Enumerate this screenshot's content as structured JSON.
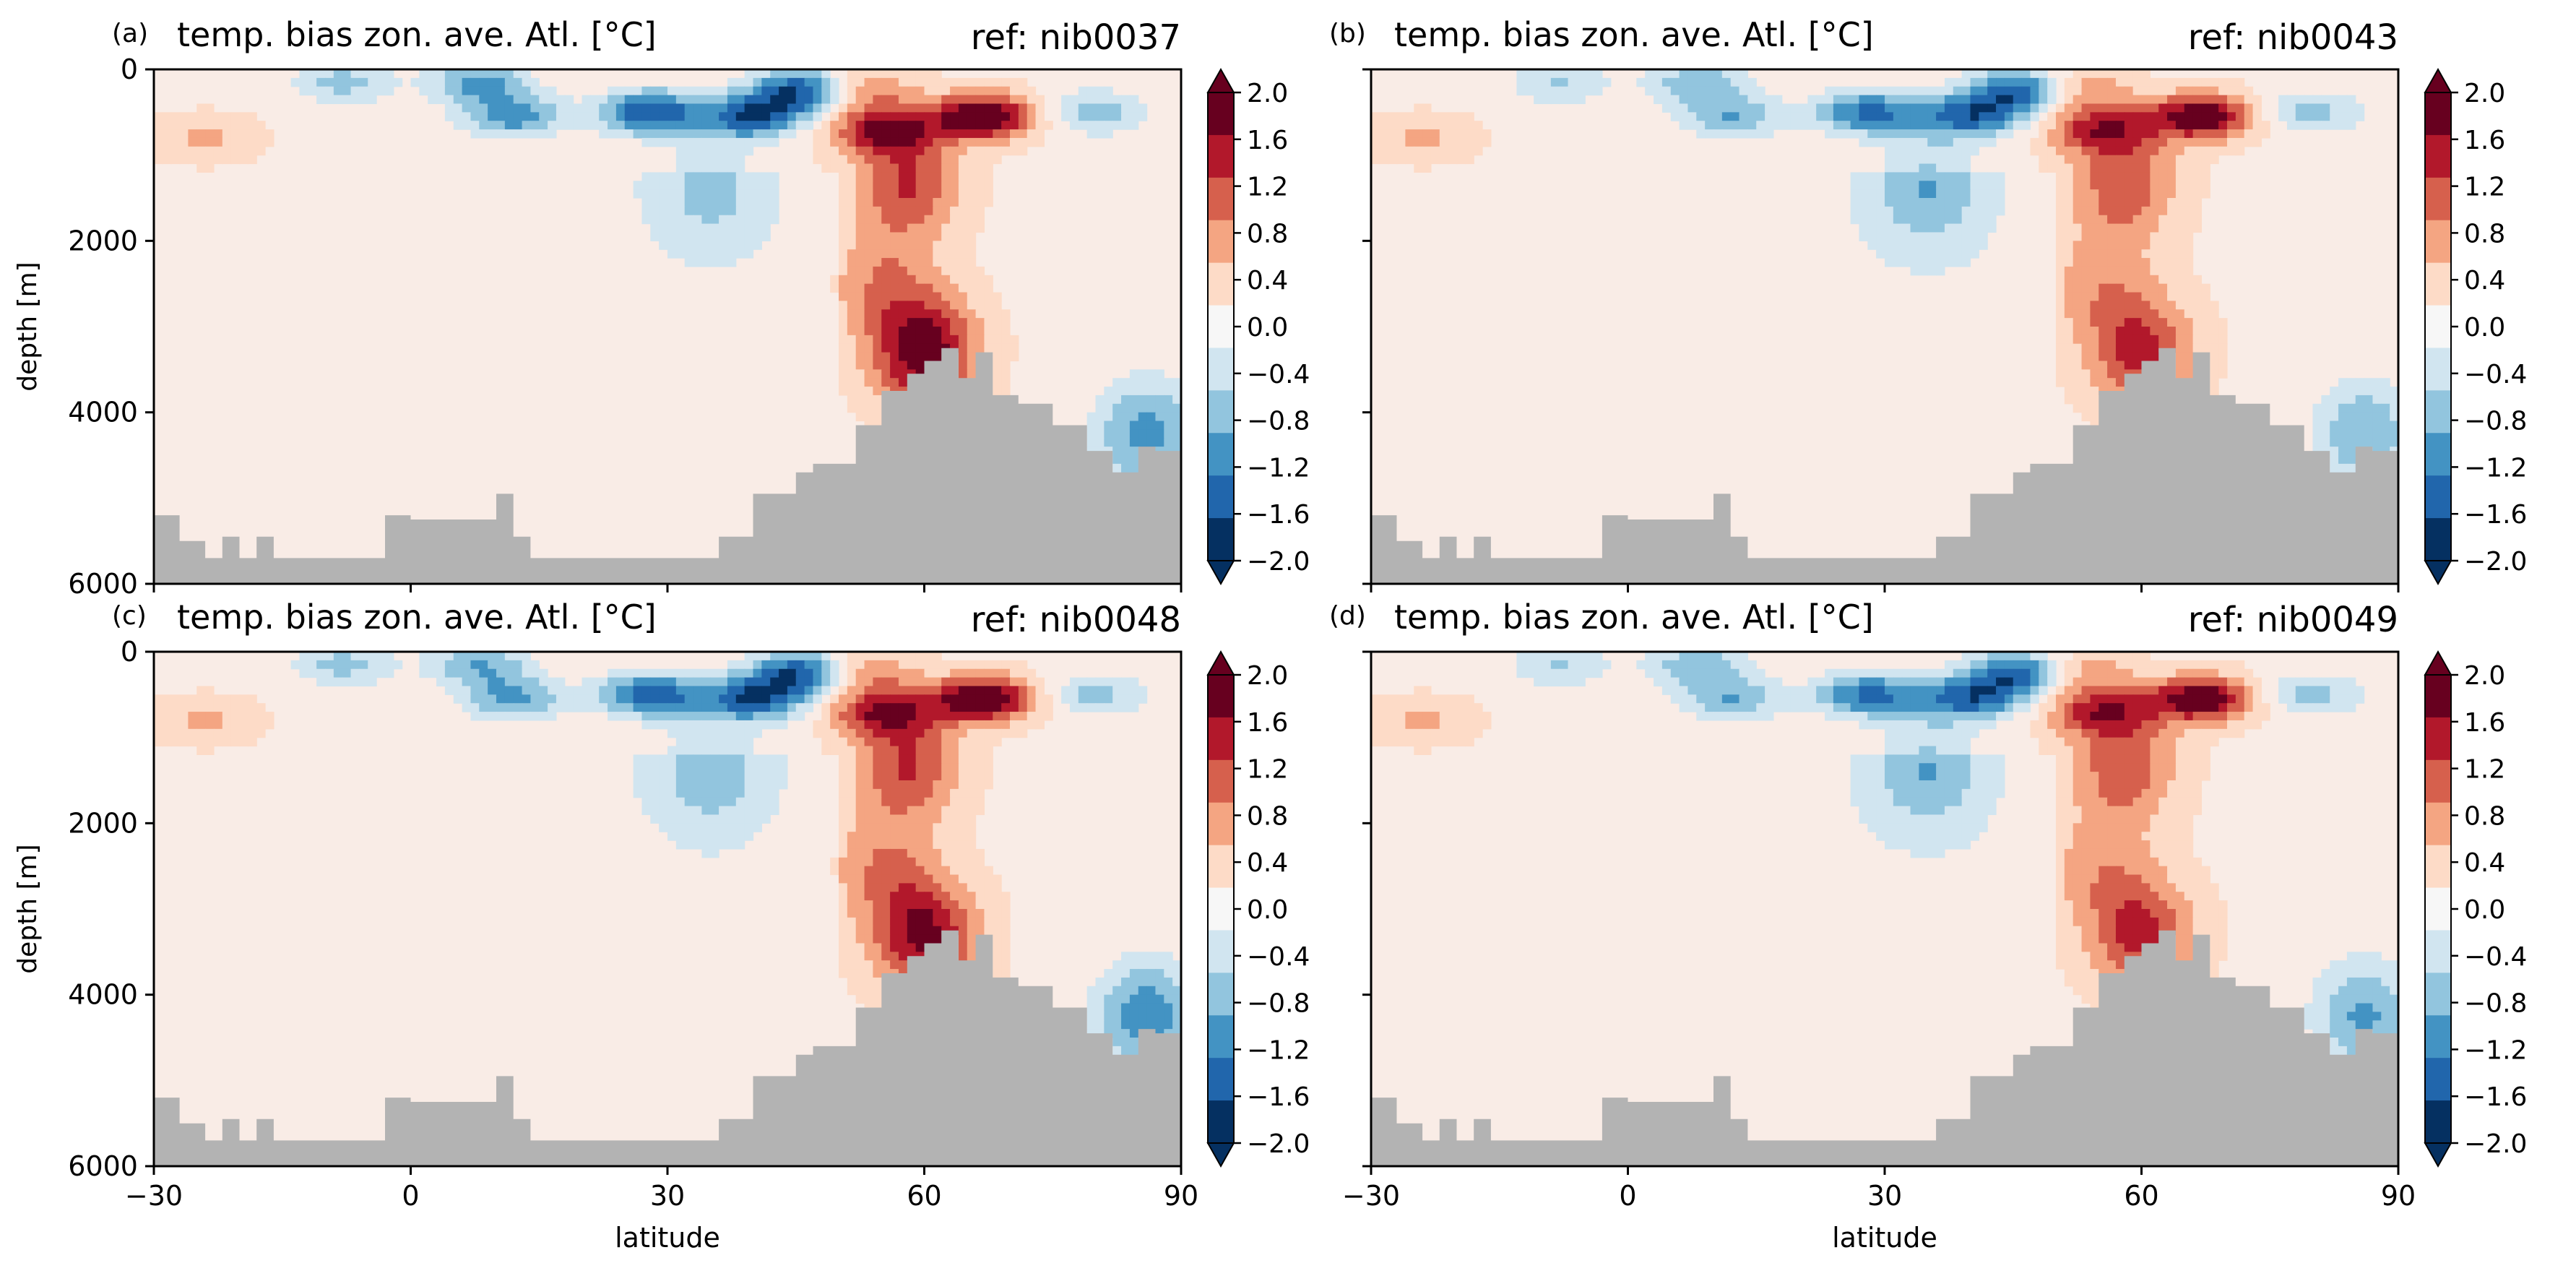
{
  "figure": {
    "colorbar_ticks": [
      "2.0",
      "1.6",
      "1.2",
      "0.8",
      "0.4",
      "0.0",
      "−0.4",
      "−0.8",
      "−1.2",
      "−1.6",
      "−2.0"
    ],
    "colormap": [
      "#053061",
      "#2166ac",
      "#4393c3",
      "#92c5de",
      "#d1e5f0",
      "#f7f7f7",
      "#fddbc7",
      "#f4a582",
      "#d6604d",
      "#b2182b",
      "#67001f"
    ],
    "land_color": "#b3b3b3"
  },
  "chart_data": [
    {
      "type": "heatmap",
      "panel_letter": "(a)",
      "title": "temp. bias zon. ave. Atl. [°C]",
      "ref_label": "ref: nib0037",
      "xlabel": "",
      "ylabel": "depth [m]",
      "xlim": [
        -30,
        90
      ],
      "ylim": [
        6000,
        0
      ],
      "xticks": [],
      "yticks": [
        "0",
        "2000",
        "4000",
        "6000"
      ],
      "colorbar": {
        "vmin": -2.0,
        "vmax": 2.0
      },
      "features": [
        {
          "lat": -8,
          "depth": 150,
          "value": -0.8
        },
        {
          "lat": 8,
          "depth": 150,
          "value": -1.1
        },
        {
          "lat": 12,
          "depth": 550,
          "value": -1.2
        },
        {
          "lat": 28,
          "depth": 500,
          "value": -1.7
        },
        {
          "lat": 40,
          "depth": 550,
          "value": -1.6
        },
        {
          "lat": 46,
          "depth": 250,
          "value": -1.9
        },
        {
          "lat": 52,
          "depth": 250,
          "value": 1.0
        },
        {
          "lat": 55,
          "depth": 700,
          "value": 1.4
        },
        {
          "lat": 58,
          "depth": 1300,
          "value": 1.2
        },
        {
          "lat": 67,
          "depth": 550,
          "value": 2.0
        },
        {
          "lat": 80,
          "depth": 500,
          "value": -0.9
        },
        {
          "lat": 35,
          "depth": 1400,
          "value": -0.6
        },
        {
          "lat": -24,
          "depth": 800,
          "value": 0.5
        },
        {
          "lat": 55,
          "depth": 2500,
          "value": 0.7
        },
        {
          "lat": 60,
          "depth": 3300,
          "value": 1.8
        },
        {
          "lat": 86,
          "depth": 4250,
          "value": -1.2
        }
      ]
    },
    {
      "type": "heatmap",
      "panel_letter": "(b)",
      "title": "temp. bias zon. ave. Atl. [°C]",
      "ref_label": "ref: nib0043",
      "xlabel": "",
      "ylabel": "",
      "xlim": [
        -30,
        90
      ],
      "ylim": [
        6000,
        0
      ],
      "xticks": [],
      "yticks": [],
      "colorbar": {
        "vmin": -2.0,
        "vmax": 2.0
      },
      "features": [
        {
          "lat": -8,
          "depth": 150,
          "value": -0.7
        },
        {
          "lat": 8,
          "depth": 150,
          "value": -0.9
        },
        {
          "lat": 12,
          "depth": 550,
          "value": -1.0
        },
        {
          "lat": 28,
          "depth": 500,
          "value": -1.5
        },
        {
          "lat": 40,
          "depth": 550,
          "value": -1.5
        },
        {
          "lat": 46,
          "depth": 250,
          "value": -1.8
        },
        {
          "lat": 52,
          "depth": 250,
          "value": 0.9
        },
        {
          "lat": 55,
          "depth": 700,
          "value": 1.2
        },
        {
          "lat": 58,
          "depth": 1300,
          "value": 1.1
        },
        {
          "lat": 67,
          "depth": 550,
          "value": 1.9
        },
        {
          "lat": 80,
          "depth": 500,
          "value": -0.8
        },
        {
          "lat": 35,
          "depth": 1400,
          "value": -0.8
        },
        {
          "lat": -24,
          "depth": 800,
          "value": 0.5
        },
        {
          "lat": 55,
          "depth": 2500,
          "value": 0.6
        },
        {
          "lat": 60,
          "depth": 3300,
          "value": 1.3
        },
        {
          "lat": 86,
          "depth": 4250,
          "value": -1.0
        }
      ]
    },
    {
      "type": "heatmap",
      "panel_letter": "(c)",
      "title": "temp. bias zon. ave. Atl. [°C]",
      "ref_label": "ref: nib0048",
      "xlabel": "latitude",
      "ylabel": "depth [m]",
      "xlim": [
        -30,
        90
      ],
      "ylim": [
        6000,
        0
      ],
      "xticks": [
        "−30",
        "0",
        "30",
        "60",
        "90"
      ],
      "yticks": [
        "0",
        "2000",
        "4000",
        "6000"
      ],
      "colorbar": {
        "vmin": -2.0,
        "vmax": 2.0
      },
      "features": [
        {
          "lat": -8,
          "depth": 150,
          "value": -0.8
        },
        {
          "lat": 8,
          "depth": 150,
          "value": -1.0
        },
        {
          "lat": 12,
          "depth": 550,
          "value": -1.1
        },
        {
          "lat": 28,
          "depth": 500,
          "value": -1.6
        },
        {
          "lat": 40,
          "depth": 550,
          "value": -1.6
        },
        {
          "lat": 46,
          "depth": 250,
          "value": -1.9
        },
        {
          "lat": 52,
          "depth": 250,
          "value": 1.0
        },
        {
          "lat": 55,
          "depth": 700,
          "value": 1.3
        },
        {
          "lat": 58,
          "depth": 1300,
          "value": 1.2
        },
        {
          "lat": 67,
          "depth": 550,
          "value": 2.0
        },
        {
          "lat": 80,
          "depth": 500,
          "value": -0.8
        },
        {
          "lat": 35,
          "depth": 1400,
          "value": -0.7
        },
        {
          "lat": -24,
          "depth": 800,
          "value": 0.5
        },
        {
          "lat": 55,
          "depth": 2500,
          "value": 0.7
        },
        {
          "lat": 60,
          "depth": 3300,
          "value": 1.6
        },
        {
          "lat": 86,
          "depth": 4250,
          "value": -1.3
        }
      ]
    },
    {
      "type": "heatmap",
      "panel_letter": "(d)",
      "title": "temp. bias zon. ave. Atl. [°C]",
      "ref_label": "ref: nib0049",
      "xlabel": "latitude",
      "ylabel": "",
      "xlim": [
        -30,
        90
      ],
      "ylim": [
        6000,
        0
      ],
      "xticks": [
        "−30",
        "0",
        "30",
        "60",
        "90"
      ],
      "yticks": [],
      "colorbar": {
        "vmin": -2.0,
        "vmax": 2.0
      },
      "features": [
        {
          "lat": -8,
          "depth": 150,
          "value": -0.7
        },
        {
          "lat": 8,
          "depth": 150,
          "value": -0.9
        },
        {
          "lat": 12,
          "depth": 550,
          "value": -1.0
        },
        {
          "lat": 28,
          "depth": 500,
          "value": -1.5
        },
        {
          "lat": 40,
          "depth": 550,
          "value": -1.5
        },
        {
          "lat": 46,
          "depth": 250,
          "value": -1.8
        },
        {
          "lat": 52,
          "depth": 250,
          "value": 0.9
        },
        {
          "lat": 55,
          "depth": 700,
          "value": 1.2
        },
        {
          "lat": 58,
          "depth": 1300,
          "value": 1.1
        },
        {
          "lat": 67,
          "depth": 550,
          "value": 1.9
        },
        {
          "lat": 80,
          "depth": 500,
          "value": -0.8
        },
        {
          "lat": 35,
          "depth": 1400,
          "value": -0.8
        },
        {
          "lat": -24,
          "depth": 800,
          "value": 0.5
        },
        {
          "lat": 55,
          "depth": 2500,
          "value": 0.6
        },
        {
          "lat": 60,
          "depth": 3300,
          "value": 1.3
        },
        {
          "lat": 86,
          "depth": 4250,
          "value": -1.1
        }
      ]
    }
  ]
}
